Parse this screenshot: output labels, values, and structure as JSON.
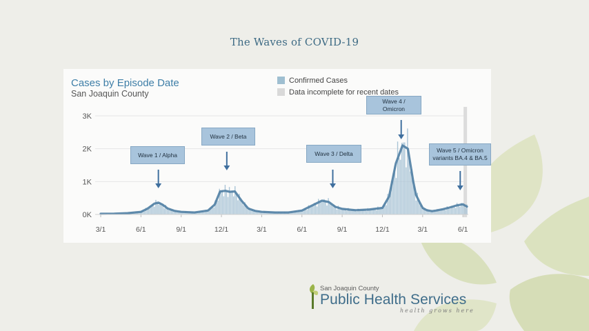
{
  "slide": {
    "title": "The Waves of COVID-19"
  },
  "chart_data": {
    "type": "area",
    "title": "Cases by Episode Date",
    "subtitle": "San Joaquin County",
    "legend": [
      {
        "label": "Confirmed Cases",
        "color": "#9fbfd1"
      },
      {
        "label": "Data incomplete for recent dates",
        "color": "#d9d9d9"
      }
    ],
    "legend_position": "top-right",
    "y_ticks": [
      "0K",
      "1K",
      "2K",
      "3K"
    ],
    "ylim": [
      0,
      3000
    ],
    "x_ticks": [
      "3/1",
      "6/1",
      "9/1",
      "12/1",
      "3/1",
      "6/1",
      "9/1",
      "12/1",
      "3/1",
      "6/1"
    ],
    "x_tick_months": [
      0,
      3,
      6,
      9,
      12,
      15,
      18,
      21,
      24,
      27
    ],
    "xlim_months": [
      0,
      27.3
    ],
    "grid": true,
    "series": [
      {
        "name": "Confirmed Cases",
        "color": "#4f7ea3",
        "x_months": [
          0,
          1,
          2,
          3,
          3.5,
          4,
          4.3,
          4.6,
          5,
          5.5,
          6,
          7,
          8,
          8.5,
          8.9,
          9.3,
          9.6,
          10,
          10.5,
          11,
          11.5,
          12,
          13,
          14,
          15,
          16,
          16.5,
          17,
          17.5,
          18,
          18.5,
          19,
          20,
          21,
          21.5,
          22,
          22.5,
          22.9,
          23.1,
          23.3,
          23.5,
          23.8,
          24,
          24.3,
          24.7,
          25,
          25.5,
          26,
          26.5,
          27,
          27.3
        ],
        "values": [
          20,
          25,
          40,
          80,
          180,
          330,
          360,
          300,
          180,
          110,
          80,
          60,
          120,
          300,
          700,
          720,
          690,
          700,
          420,
          180,
          110,
          80,
          60,
          60,
          120,
          320,
          420,
          380,
          230,
          170,
          150,
          130,
          150,
          200,
          550,
          1550,
          2100,
          2000,
          1500,
          1000,
          600,
          350,
          200,
          130,
          100,
          120,
          160,
          210,
          270,
          310,
          240
        ]
      }
    ],
    "annotations": [
      {
        "label": "Wave 1 / Alpha",
        "x_month": 4.3
      },
      {
        "label": "Wave 2 / Beta",
        "x_month": 9.4
      },
      {
        "label": "Wave 3 / Delta",
        "x_month": 17.3
      },
      {
        "label": "Wave 4 /\nOmicron",
        "x_month": 22.4
      },
      {
        "label": "Wave 5 / Omicron\nvariants BA.4 & BA.5",
        "x_month": 26.8
      }
    ]
  },
  "logo": {
    "county": "San Joaquin County",
    "name": "Public Health Services",
    "tagline": "health grows here"
  },
  "colors": {
    "accent": "#3e7ea7",
    "leaf": "#c9d3a0"
  }
}
